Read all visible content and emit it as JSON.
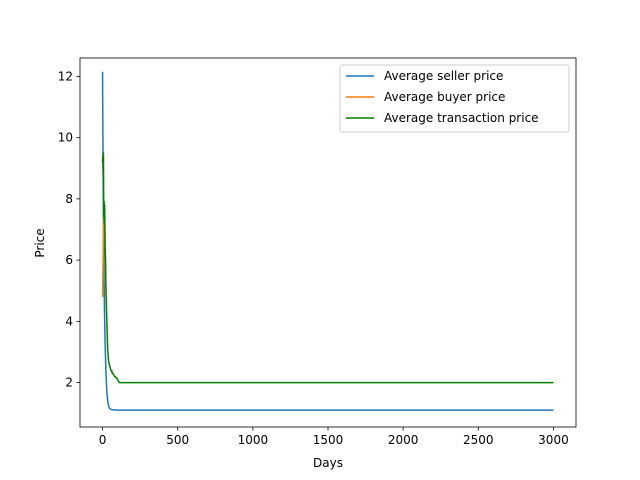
{
  "chart_data": {
    "type": "line",
    "title": "",
    "xlabel": "Days",
    "ylabel": "Price",
    "xlim": [
      -150,
      3150
    ],
    "ylim": [
      0.55,
      12.6
    ],
    "xticks": [
      0,
      500,
      1000,
      1500,
      2000,
      2500,
      3000
    ],
    "yticks": [
      2,
      4,
      6,
      8,
      10,
      12
    ],
    "grid": false,
    "legend_position": "top-right",
    "series": [
      {
        "name": "Average seller price",
        "color": "#1f77b4",
        "x": [
          0,
          2,
          4,
          6,
          8,
          10,
          12,
          15,
          18,
          22,
          26,
          30,
          35,
          40,
          45,
          50,
          60,
          70,
          80,
          100,
          150,
          300,
          500,
          800,
          1000,
          1500,
          2000,
          2500,
          3000
        ],
        "y": [
          12.15,
          10.4,
          8.7,
          7.4,
          6.3,
          5.4,
          4.6,
          3.8,
          3.1,
          2.45,
          1.95,
          1.6,
          1.38,
          1.25,
          1.18,
          1.14,
          1.12,
          1.11,
          1.11,
          1.1,
          1.1,
          1.1,
          1.1,
          1.1,
          1.1,
          1.1,
          1.1,
          1.1,
          1.1
        ]
      },
      {
        "name": "Average buyer price",
        "color": "#ff7f0e",
        "x": [
          0,
          2,
          4,
          6,
          8,
          10,
          12,
          14,
          16,
          18,
          20,
          22,
          24
        ],
        "y": [
          4.8,
          5.4,
          6.1,
          6.9,
          7.8,
          7.3,
          7.9,
          7.2,
          6.8,
          6.2,
          5.6,
          5.2,
          4.8
        ]
      },
      {
        "name": "Average transaction price",
        "color": "#008000",
        "x": [
          0,
          2,
          4,
          6,
          8,
          10,
          12,
          14,
          16,
          18,
          20,
          22,
          25,
          28,
          31,
          34,
          37,
          40,
          45,
          50,
          55,
          60,
          65,
          70,
          75,
          80,
          85,
          90,
          95,
          100,
          105,
          110,
          120,
          150,
          300,
          500,
          1000,
          1500,
          2000,
          2500,
          3000
        ],
        "y": [
          9.2,
          9.4,
          8.9,
          9.5,
          7.4,
          7.9,
          7.2,
          7.8,
          6.9,
          6.3,
          6.0,
          5.2,
          4.6,
          4.1,
          3.6,
          3.1,
          2.9,
          2.7,
          2.6,
          2.5,
          2.4,
          2.4,
          2.3,
          2.3,
          2.25,
          2.2,
          2.2,
          2.15,
          2.15,
          2.1,
          2.05,
          2.0,
          2.0,
          2.0,
          2.0,
          2.0,
          2.0,
          2.0,
          2.0,
          2.0,
          2.0
        ]
      }
    ]
  }
}
